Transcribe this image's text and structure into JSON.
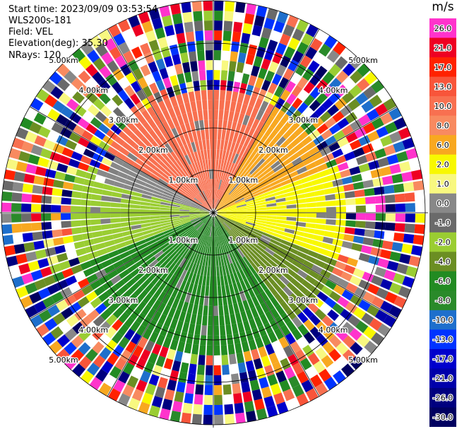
{
  "header": {
    "start_time": "Start time: 2023/09/09 03:53:54",
    "instrument": "WLS200s-181",
    "field": "Field: VEL",
    "elevation": "Elevation(deg): 35.30",
    "nrays": "NRays: 120"
  },
  "chart_data": {
    "type": "heatmap",
    "subtype": "radar-ppi",
    "field": "VEL",
    "elevation_deg": 35.3,
    "n_rays": 120,
    "ring_labels": [
      "1.00km",
      "2.00km",
      "3.00km",
      "4.00km",
      "5.00km"
    ],
    "azimuth_lines_deg": [
      0,
      30,
      60,
      90,
      120,
      150,
      180,
      210,
      240,
      270,
      300,
      330
    ],
    "colorbar": {
      "unit": "m/s",
      "tick_labels": [
        "26.0",
        "21.0",
        "17.0",
        "13.0",
        "10.0",
        "8.0",
        "6.0",
        "2.0",
        "1.0",
        "0.0",
        "-1.0",
        "-2.0",
        "-4.0",
        "-6.0",
        "-8.0",
        "-10.0",
        "-13.0",
        "-17.0",
        "-21.0",
        "-26.0",
        "-30.0"
      ],
      "colors": [
        "#ff33cc",
        "#ee0022",
        "#ff2200",
        "#f8553a",
        "#f87050",
        "#f88a60",
        "#f8a820",
        "#f8f800",
        "#f8f880",
        "#888888",
        "#6a6a6a",
        "#9acd32",
        "#6b8e23",
        "#228b22",
        "#2a8a2a",
        "#1e6fcc",
        "#0033ff",
        "#0000cc",
        "#0000aa",
        "#00007f",
        "#000060"
      ]
    },
    "sectors": [
      {
        "from_az": 300,
        "to_az": 30,
        "max_km": 2.9,
        "velocity": 10.0
      },
      {
        "from_az": 30,
        "to_az": 70,
        "max_km": 2.8,
        "velocity": 6.0
      },
      {
        "from_az": 70,
        "to_az": 110,
        "max_km": 3.2,
        "velocity": 2.0
      },
      {
        "from_az": 110,
        "to_az": 145,
        "max_km": 3.1,
        "velocity": -4.0
      },
      {
        "from_az": 145,
        "to_az": 215,
        "max_km": 1.4,
        "velocity": -8.0
      },
      {
        "from_az": 145,
        "to_az": 215,
        "max_km": 3.3,
        "velocity": -6.0
      },
      {
        "from_az": 215,
        "to_az": 250,
        "max_km": 3.3,
        "velocity": -6.0
      },
      {
        "from_az": 250,
        "to_az": 285,
        "max_km": 3.4,
        "velocity": -2.0
      },
      {
        "from_az": 285,
        "to_az": 300,
        "max_km": 2.6,
        "velocity": 0.0
      }
    ]
  }
}
